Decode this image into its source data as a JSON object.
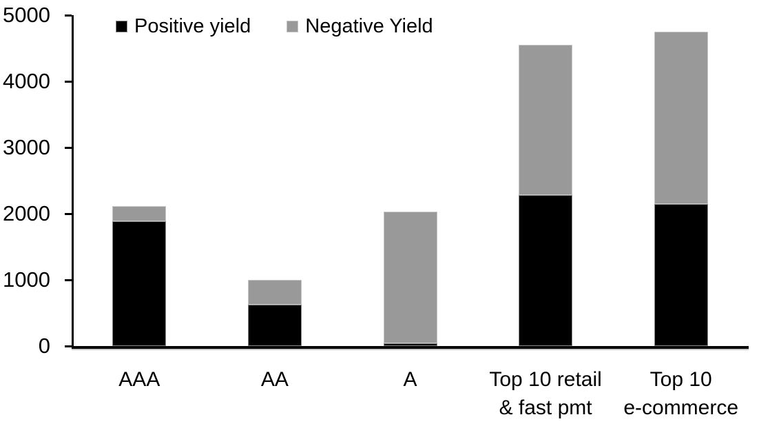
{
  "chart_data": {
    "type": "bar",
    "stacked": true,
    "title": "",
    "xlabel": "",
    "ylabel": "",
    "categories": [
      "AAA",
      "AA",
      "A",
      "Top 10 retail\n& fast pmt",
      "Top 10\ne-commerce"
    ],
    "series": [
      {
        "name": "Positive yield",
        "color": "#000000",
        "border": "#8a8a8a",
        "values": [
          1890,
          620,
          40,
          2280,
          2150
        ]
      },
      {
        "name": "Negative Yield",
        "color": "#999999",
        "border": "#c6c6c6",
        "values": [
          220,
          380,
          1990,
          2270,
          2600
        ]
      }
    ],
    "totals": [
      2110,
      1000,
      2030,
      4550,
      4750
    ],
    "ylim": [
      0,
      5000
    ],
    "ytick_step": 1000,
    "ytick_labels": [
      "0",
      "1000",
      "2000",
      "3000",
      "4000",
      "5000"
    ],
    "legend_position": "top",
    "grid": false,
    "axis_color": "#000000",
    "background_color": "#ffffff"
  }
}
